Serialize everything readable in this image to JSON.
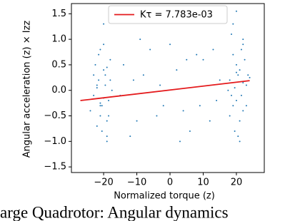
{
  "chart_data": {
    "type": "scatter",
    "xlabel": "Normalized torque (z)",
    "ylabel": "Angular acceleration (z) × Izz",
    "caption": "arge Quadrotor: Angular dynamics",
    "xlim": [
      -29.7,
      28.4
    ],
    "ylim": [
      -1.61,
      1.7
    ],
    "xticks": [
      {
        "value": -20,
        "label": "−20"
      },
      {
        "value": -10,
        "label": "−10"
      },
      0,
      10,
      20
    ],
    "yticks": [
      {
        "value": -1.5,
        "label": "−1.5"
      },
      {
        "value": -1.0,
        "label": "−1.0"
      },
      {
        "value": -0.5,
        "label": "−0.5"
      },
      {
        "value": 0,
        "label": "0.0"
      },
      {
        "value": 0.5,
        "label": "0.5"
      },
      {
        "value": 1.0,
        "label": "1.0"
      },
      {
        "value": 1.5,
        "label": "1.5"
      }
    ],
    "legend": "top",
    "points": {
      "color": "#1f77b4",
      "x": [
        -22,
        -21,
        -20,
        -19,
        -18,
        -23,
        -21.5,
        -20.5,
        -19.5,
        -18.5,
        -22.5,
        -21,
        -20,
        -19,
        -17.5,
        -24,
        -20,
        -21,
        -19,
        -22,
        -18,
        -20.5,
        -21.5,
        -19.5,
        -23,
        -20,
        -18.5,
        -22,
        -21,
        -19,
        18,
        19,
        20,
        21,
        22,
        23,
        18.5,
        19.5,
        20.5,
        21.5,
        22.5,
        17.5,
        20,
        21,
        19,
        22,
        23.5,
        20,
        21,
        19,
        18,
        22,
        20.5,
        21.5,
        19.5,
        23,
        24,
        20,
        18.5,
        22,
        -14,
        -10,
        -6,
        -2,
        2,
        6,
        10,
        14,
        -12,
        -8,
        -4,
        0,
        4,
        8,
        12,
        15,
        -15,
        -9,
        -3,
        3,
        9,
        13,
        -11,
        5
      ],
      "y": [
        0.1,
        -0.3,
        0.4,
        -0.6,
        0.2,
        -0.1,
        0.7,
        -0.8,
        0.3,
        -0.2,
        0.5,
        -0.5,
        0.9,
        -0.9,
        0.0,
        -0.4,
        1.3,
        0.8,
        -1.0,
        -0.7,
        0.6,
        -0.3,
        0.2,
        0.1,
        0.3,
        -0.15,
        -0.5,
        0.05,
        -0.25,
        0.45,
        0.2,
        -0.3,
        0.5,
        -0.6,
        0.9,
        0.1,
        1.1,
        -0.8,
        0.3,
        -0.1,
        0.6,
        0.0,
        1.55,
        -1.0,
        0.7,
        -0.4,
        0.3,
        -0.2,
        0.4,
        1.3,
        -0.5,
        0.15,
        -0.9,
        0.8,
        0.05,
        -0.3,
        0.25,
        0.35,
        -0.1,
        1.0,
        0.5,
        -0.6,
        0.8,
        -0.3,
        0.4,
        -0.8,
        0.6,
        -0.2,
        -0.9,
        0.3,
        -0.5,
        0.9,
        -0.4,
        0.7,
        -0.6,
        0.2,
        -0.1,
        1.0,
        0.1,
        -1.0,
        -0.3,
        0.8,
        0.2,
        0.6
      ]
    },
    "fit": {
      "name": "Kτ = 7.783e-03",
      "color": "#e41a1c",
      "x": [
        -27,
        24
      ],
      "y": [
        -0.2,
        0.19
      ]
    }
  }
}
